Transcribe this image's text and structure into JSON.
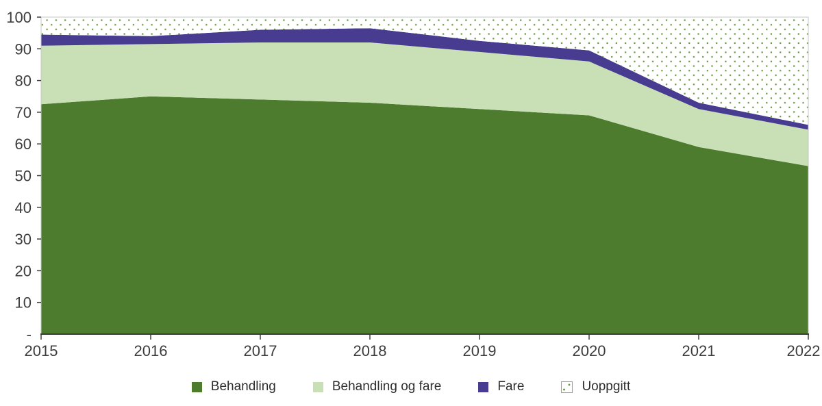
{
  "colors": {
    "axis": "#3d3d3d",
    "plot_border": "#c4c4c4",
    "tick_text": "#3c3c3c",
    "pattern_dot": "#67973f",
    "pattern_bg": "#ffffff"
  },
  "chart_data": {
    "type": "area",
    "stacked": true,
    "title": "",
    "xlabel": "",
    "ylabel": "",
    "grid": false,
    "legend_position": "bottom",
    "x": [
      2015,
      2016,
      2017,
      2018,
      2019,
      2020,
      2021,
      2022
    ],
    "xtick_labels": [
      "2015",
      "2016",
      "2017",
      "2018",
      "2019",
      "2020",
      "2021",
      "2022"
    ],
    "ylim": [
      0,
      100
    ],
    "ytick_labels": [
      "-",
      "10",
      "20",
      "30",
      "40",
      "50",
      "60",
      "70",
      "80",
      "90",
      "100"
    ],
    "series": [
      {
        "name": "Behandling",
        "color": "#4d7c2f",
        "values": [
          72.5,
          75,
          74,
          73,
          71,
          69,
          59,
          53
        ]
      },
      {
        "name": "Behandling og fare",
        "color": "#c9e0b7",
        "values": [
          18.5,
          16.5,
          18,
          19,
          18,
          17,
          12,
          11.5
        ]
      },
      {
        "name": "Fare",
        "color": "#473c8f",
        "values": [
          3.5,
          2.5,
          4,
          4.5,
          3.5,
          3.5,
          2,
          1.5
        ]
      },
      {
        "name": "Uoppgitt",
        "color": "pattern-dots",
        "values": [
          5.5,
          6,
          4,
          3.5,
          7.5,
          10.5,
          27,
          34
        ]
      }
    ]
  }
}
